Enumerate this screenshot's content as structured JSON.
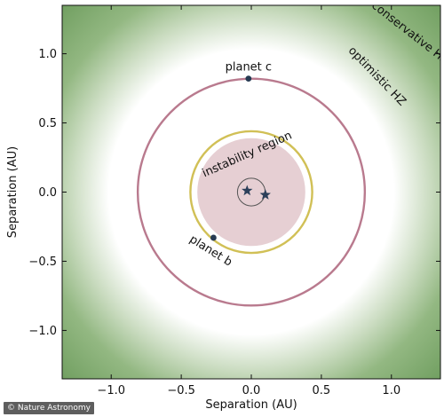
{
  "chart_data": {
    "type": "scatter",
    "xlabel": "Separation (AU)",
    "ylabel": "Separation (AU)",
    "xlim": [
      -1.35,
      1.35
    ],
    "ylim": [
      -1.35,
      1.35
    ],
    "xticks": [
      -1.0,
      -0.5,
      0.0,
      0.5,
      1.0
    ],
    "yticks": [
      -1.0,
      -0.5,
      0.0,
      0.5,
      1.0
    ],
    "xtick_labels": [
      "−1.0",
      "−0.5",
      "0.0",
      "0.5",
      "1.0"
    ],
    "ytick_labels": [
      "−1.0",
      "−0.5",
      "0.0",
      "0.5",
      "1.0"
    ],
    "zones": {
      "conservative_label": "conservative HZ",
      "optimistic_label": "optimistic HZ",
      "instability_label": "instability region",
      "instability_radius": 0.39,
      "optimistic_inner_radius": 0.95,
      "optimistic_outer_radius": 1.3,
      "background_color": "#6a9a5a",
      "hz_color": "#ffffff",
      "instability_color": "#e6cfd3"
    },
    "orbits": [
      {
        "name": "planet b",
        "radius": 0.44,
        "color": "#d1c056"
      },
      {
        "name": "planet c",
        "radius": 0.82,
        "color": "#b97a8e"
      },
      {
        "name": "binary",
        "radius": 0.1,
        "color": "#555555"
      }
    ],
    "planets": [
      {
        "label": "planet b",
        "x": -0.27,
        "y": -0.33,
        "color": "#263a52"
      },
      {
        "label": "planet c",
        "x": -0.02,
        "y": 0.82,
        "color": "#263a52"
      }
    ],
    "stars": [
      {
        "x": -0.03,
        "y": 0.01,
        "color": "#2b3f5a"
      },
      {
        "x": 0.1,
        "y": -0.02,
        "color": "#2b3f5a"
      }
    ]
  },
  "watermark": "© Nature Astronomy"
}
